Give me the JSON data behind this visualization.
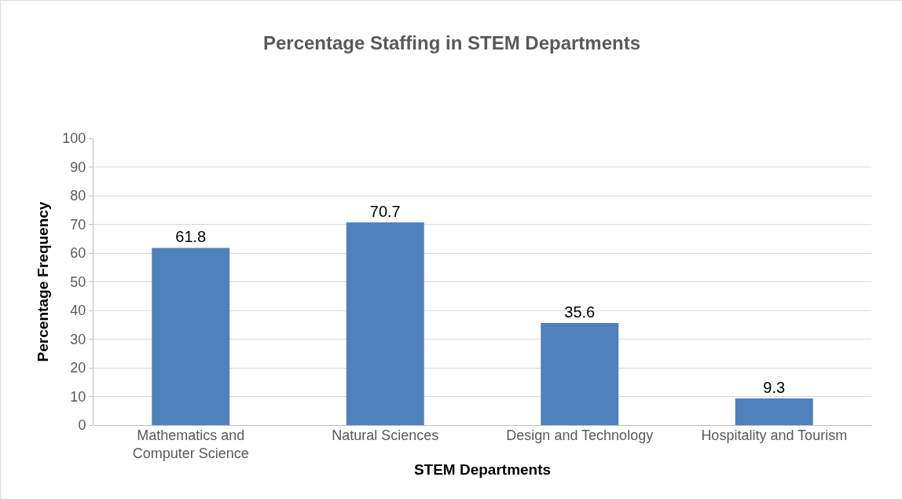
{
  "chart_data": {
    "type": "bar",
    "title": "Percentage Staffing in STEM Departments",
    "xlabel": "STEM Departments",
    "ylabel": "Percentage Frequency",
    "categories": [
      "Mathematics and Computer Science",
      "Natural Sciences",
      "Design and Technology",
      "Hospitality and Tourism"
    ],
    "values": [
      61.8,
      70.7,
      35.6,
      9.3
    ],
    "color": "#4f81bd",
    "ylim": [
      0,
      100
    ],
    "yticks": [
      0,
      10,
      20,
      30,
      40,
      50,
      60,
      70,
      80,
      90,
      100
    ],
    "grid": "y",
    "data_labels": true,
    "legend": false
  }
}
